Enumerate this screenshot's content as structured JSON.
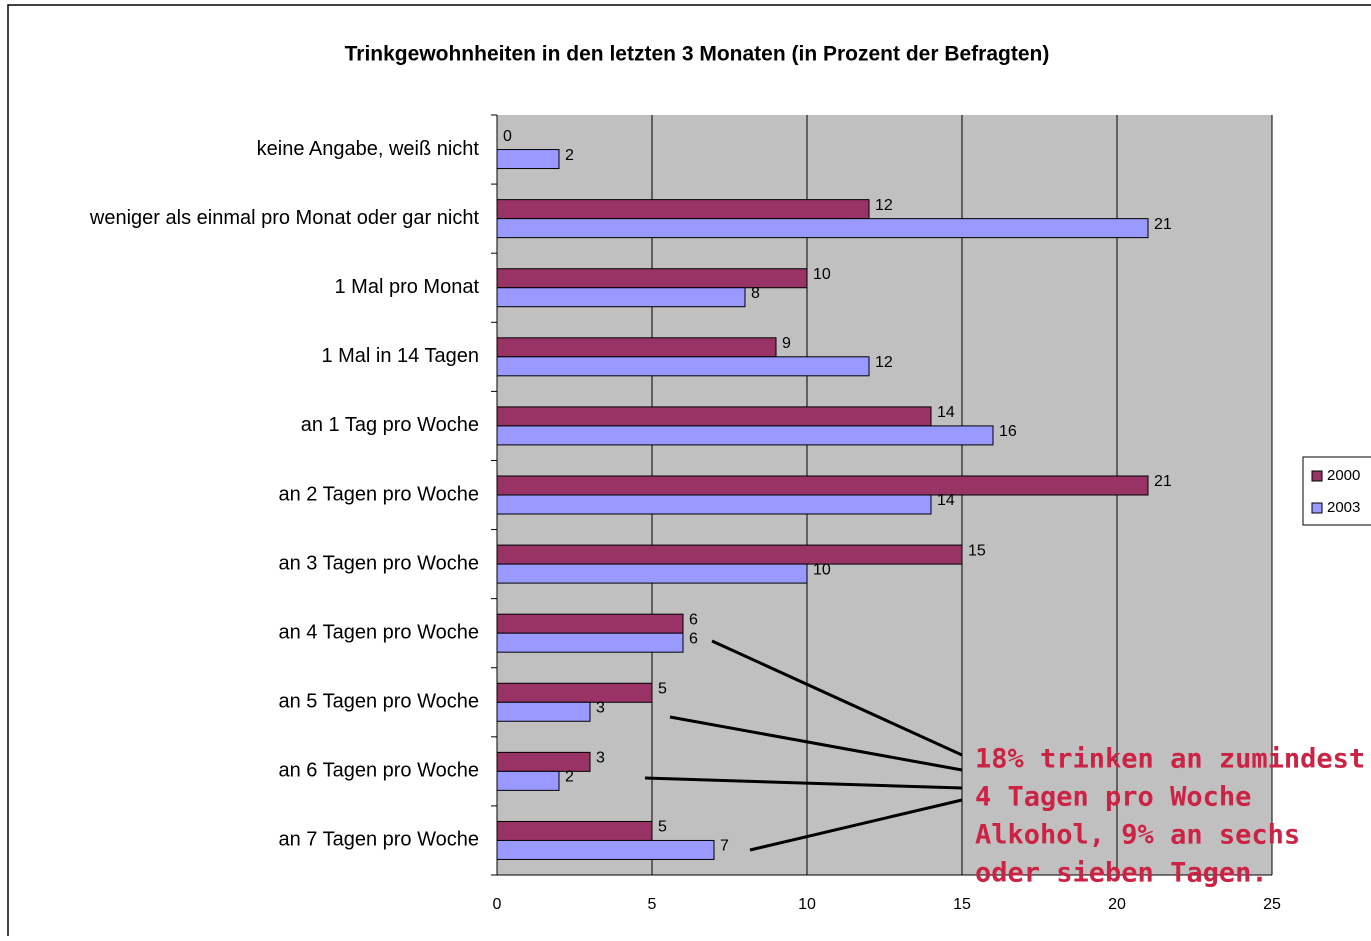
{
  "chart_data": {
    "type": "hbar",
    "title": "Trinkgewohnheiten in den letzten 3 Monaten (in Prozent der Befragten)",
    "categories": [
      "keine Angabe, weiß nicht",
      "weniger als einmal pro Monat oder gar nicht",
      "1 Mal pro Monat",
      "1 Mal in 14 Tagen",
      "an 1 Tag pro Woche",
      "an 2 Tagen pro Woche",
      "an 3 Tagen pro Woche",
      "an 4 Tagen pro Woche",
      "an 5 Tagen pro Woche",
      "an 6 Tagen pro Woche",
      "an 7 Tagen pro Woche"
    ],
    "series": [
      {
        "name": "2000",
        "color": "#993366",
        "values": [
          0,
          12,
          10,
          9,
          14,
          21,
          15,
          6,
          5,
          3,
          5
        ]
      },
      {
        "name": "2003",
        "color": "#9999ff",
        "values": [
          2,
          21,
          8,
          12,
          16,
          14,
          10,
          6,
          3,
          2,
          7
        ]
      }
    ],
    "xlim": [
      0,
      25
    ],
    "xticks": [
      0,
      5,
      10,
      15,
      20,
      25
    ],
    "grid": true,
    "legend": "right",
    "annotation": [
      "18% trinken an zumindest",
      "4 Tagen pro Woche",
      "Alkohol, 9% an sechs",
      "oder sieben Tagen."
    ]
  }
}
